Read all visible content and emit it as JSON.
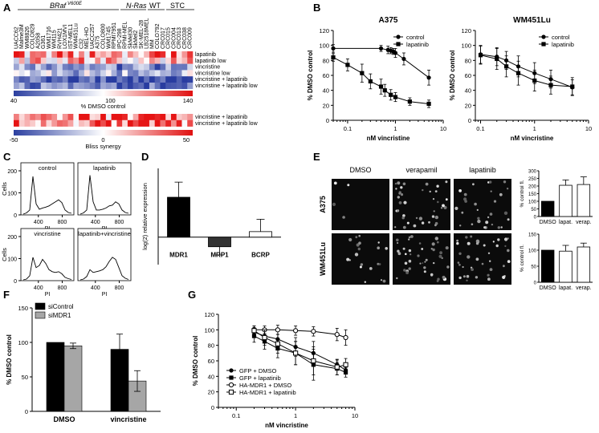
{
  "panel_letters": [
    "A",
    "B",
    "C",
    "D",
    "E",
    "F",
    "G"
  ],
  "panelA": {
    "group_labels": [
      "BRaf",
      "V600E",
      "N-Ras",
      "WT",
      "STC"
    ],
    "cell_lines": [
      "UACC62",
      "Malme3M",
      "WM8826",
      "COLO829",
      "A2058",
      "G361",
      "WM1716",
      "WM115",
      "RVH421",
      "LOX1MVI",
      "IST-MEL1",
      "WM451Lu",
      "C32",
      "MEL-HO",
      "UACC257",
      "A375",
      "COLO800",
      "WM1745",
      "RPMI7951",
      "IPC-298",
      "RPMI-MEL",
      "SkMel30",
      "SkMel2",
      "SK-MEL-28",
      "LB2518MEL",
      "MM",
      "COLO792",
      "CRC017",
      "CRC015",
      "CRC004",
      "CRC013",
      "CRC038",
      "CRC009"
    ],
    "heatmap_rows": [
      "lapatinib",
      "lapatinib low",
      "vincristine",
      "vincristine low",
      "vincristine + lapatinib",
      "vincristine + lapatinib low"
    ],
    "colorbar1": {
      "ticks": [
        "40",
        "100",
        "140"
      ],
      "label": "% DMSO control"
    },
    "bliss_rows": [
      "vincristine + lapatinib",
      "vincristine + lapatinib low"
    ],
    "colorbar2": {
      "ticks": [
        "-50",
        "0",
        "50"
      ],
      "label": "Bliss synergy"
    }
  },
  "panelC": {
    "subpanels": [
      "control",
      "lapatinib",
      "vincristine",
      "lapatinib+vincristine"
    ],
    "ylabel": "Cells",
    "xlabel": "PI",
    "yticks": [
      "0",
      "100",
      "200"
    ],
    "xticks": [
      "400",
      "800"
    ]
  },
  "panelE": {
    "columns": [
      "DMSO",
      "verapamil",
      "lapatinib"
    ],
    "rows": [
      "A375",
      "WM451Lu"
    ],
    "bar_categories": [
      "DMSO",
      "lapat.",
      "verap."
    ],
    "bar_ylabel": "% control fl."
  },
  "chart_data": [
    {
      "type": "line",
      "title": "A375",
      "xlabel": "nM vincristine",
      "ylabel": "% DMSO control",
      "xscale": "log",
      "xlim": [
        0.05,
        10
      ],
      "ylim": [
        0,
        120
      ],
      "yticks": [
        0,
        20,
        40,
        60,
        80,
        100,
        120
      ],
      "xticks": [
        "0.1",
        "1",
        "10"
      ],
      "legend": "top-right",
      "series": [
        {
          "name": "control",
          "marker": "circle",
          "x": [
            0.05,
            0.5,
            0.7,
            0.8,
            0.9,
            1.0,
            1.5,
            5.0
          ],
          "y": [
            96,
            96,
            94,
            93,
            92,
            90,
            82,
            57
          ],
          "err": [
            5,
            4,
            5,
            4,
            4,
            6,
            8,
            10
          ]
        },
        {
          "name": "lapatinib",
          "marker": "square",
          "x": [
            0.05,
            0.1,
            0.2,
            0.3,
            0.5,
            0.6,
            0.8,
            1.0,
            2.0,
            5.0
          ],
          "y": [
            84,
            74,
            63,
            52,
            45,
            40,
            34,
            31,
            25,
            22
          ],
          "err": [
            5,
            8,
            12,
            10,
            10,
            8,
            7,
            6,
            5,
            5
          ]
        }
      ]
    },
    {
      "type": "line",
      "title": "WM451Lu",
      "xlabel": "nM vincristine",
      "ylabel": "% DMSO control",
      "xscale": "log",
      "xlim": [
        0.08,
        10
      ],
      "ylim": [
        0,
        120
      ],
      "yticks": [
        0,
        20,
        40,
        60,
        80,
        100,
        120
      ],
      "xticks": [
        "0.1",
        "1",
        "10"
      ],
      "legend": "top-right",
      "series": [
        {
          "name": "control",
          "marker": "circle",
          "x": [
            0.1,
            0.2,
            0.3,
            0.5,
            1.0,
            2.0,
            5.0
          ],
          "y": [
            88,
            85,
            80,
            72,
            63,
            55,
            44
          ],
          "err": [
            12,
            12,
            12,
            14,
            14,
            12,
            10
          ]
        },
        {
          "name": "lapatinib",
          "marker": "square",
          "x": [
            0.1,
            0.2,
            0.3,
            0.5,
            1.0,
            2.0,
            5.0
          ],
          "y": [
            87,
            82,
            72,
            63,
            53,
            47,
            45
          ],
          "err": [
            12,
            14,
            14,
            16,
            14,
            12,
            12
          ]
        }
      ]
    },
    {
      "type": "bar",
      "ylabel": "log(2) relative expression",
      "categories": [
        "MDR1",
        "MRP1",
        "BCRP"
      ],
      "values": [
        2.9,
        -0.7,
        0.4
      ],
      "err": [
        1.1,
        0.6,
        0.9
      ],
      "ylim": [
        -2,
        5
      ]
    },
    {
      "type": "bar",
      "title": "A375",
      "ylabel": "% control fl.",
      "categories": [
        "DMSO",
        "lapat.",
        "verap."
      ],
      "values": [
        100,
        205,
        210
      ],
      "err": [
        0,
        35,
        50
      ],
      "ylim": [
        0,
        300
      ],
      "yticks": [
        0,
        50,
        100,
        150,
        200,
        250,
        300
      ]
    },
    {
      "type": "bar",
      "title": "WM451Lu",
      "ylabel": "% control fl.",
      "categories": [
        "DMSO",
        "lapat.",
        "verap."
      ],
      "values": [
        100,
        97,
        110
      ],
      "err": [
        0,
        18,
        12
      ],
      "ylim": [
        0,
        150
      ],
      "yticks": [
        0,
        50,
        100,
        150
      ]
    },
    {
      "type": "bar",
      "ylabel": "% DMSO control",
      "categories": [
        "DMSO",
        "vincristine"
      ],
      "series": [
        {
          "name": "siControl",
          "color": "#000000",
          "values": [
            100,
            90
          ],
          "err": [
            0,
            22
          ]
        },
        {
          "name": "siMDR1",
          "color": "#a6a6a6",
          "values": [
            95,
            44
          ],
          "err": [
            4,
            15
          ]
        }
      ],
      "ylim": [
        0,
        150
      ],
      "yticks": [
        0,
        50,
        100,
        150
      ],
      "legend": "top-left"
    },
    {
      "type": "line",
      "xlabel": "nM vincristine",
      "ylabel": "% DMSO control",
      "xscale": "log",
      "xlim": [
        0.05,
        10
      ],
      "ylim": [
        0,
        120
      ],
      "yticks": [
        0,
        20,
        40,
        60,
        80,
        100,
        120
      ],
      "xticks": [
        "0.1",
        "1",
        "10"
      ],
      "legend": "bottom-left",
      "series": [
        {
          "name": "GFP + DMSO",
          "marker": "filled-circle",
          "x": [
            0.2,
            0.3,
            0.5,
            1.0,
            2.0,
            5.0,
            7.0
          ],
          "y": [
            97,
            92,
            88,
            78,
            70,
            55,
            48
          ],
          "err": [
            6,
            8,
            10,
            12,
            15,
            6,
            5
          ]
        },
        {
          "name": "GFP + lapatinib",
          "marker": "filled-square",
          "x": [
            0.2,
            0.3,
            0.5,
            1.0,
            2.0,
            5.0,
            7.0
          ],
          "y": [
            92,
            85,
            76,
            70,
            55,
            50,
            45
          ],
          "err": [
            8,
            10,
            12,
            15,
            20,
            8,
            6
          ]
        },
        {
          "name": "HA-MDR1 + DMSO",
          "marker": "open-circle",
          "x": [
            0.2,
            0.3,
            0.5,
            1.0,
            2.0,
            5.0,
            7.0
          ],
          "y": [
            100,
            100,
            100,
            99,
            98,
            94,
            90
          ],
          "err": [
            5,
            5,
            6,
            6,
            6,
            8,
            10
          ]
        },
        {
          "name": "HA-MDR1 + lapatinib",
          "marker": "open-square",
          "x": [
            0.2,
            0.3,
            0.5,
            1.0,
            2.0,
            5.0,
            7.0
          ],
          "y": [
            99,
            90,
            82,
            70,
            60,
            52,
            55
          ],
          "err": [
            6,
            10,
            12,
            15,
            18,
            10,
            8
          ]
        }
      ]
    }
  ]
}
